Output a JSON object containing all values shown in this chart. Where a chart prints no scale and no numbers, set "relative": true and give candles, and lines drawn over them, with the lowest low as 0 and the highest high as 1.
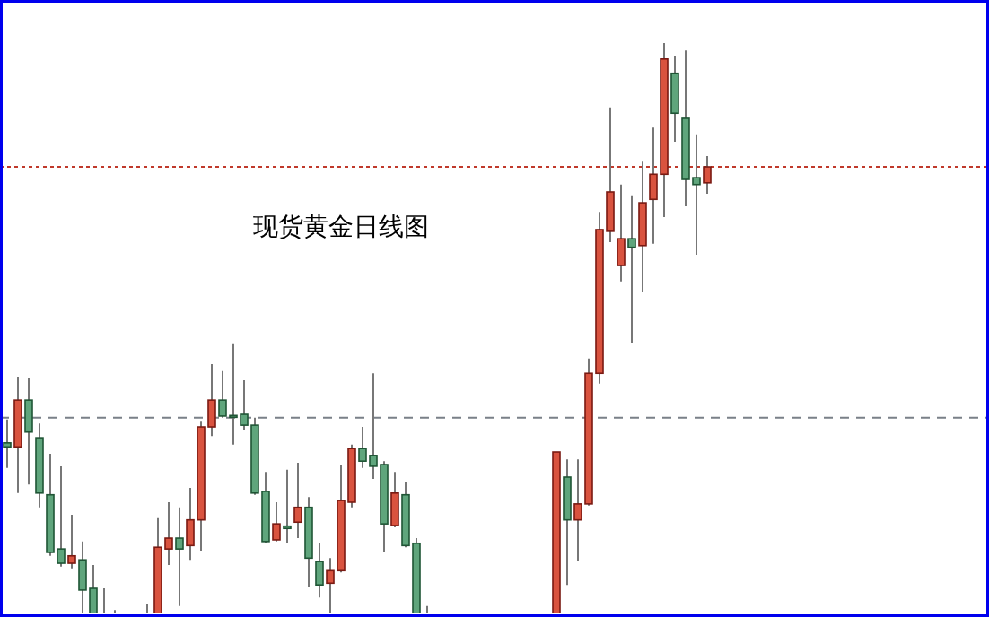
{
  "chart_data": {
    "type": "candlestick",
    "title": "现货黄金日线图",
    "relative": true,
    "categories": [
      null,
      null,
      null,
      null,
      null,
      null,
      null,
      null,
      null,
      null,
      null,
      null,
      null,
      null,
      null,
      null,
      null,
      null,
      null,
      null,
      null,
      null,
      null,
      null,
      null,
      null,
      null,
      null,
      null,
      null,
      null,
      null,
      null,
      null,
      null,
      null,
      null,
      null,
      null,
      null,
      null,
      null,
      null,
      null,
      null,
      null,
      null,
      null,
      null,
      null,
      null,
      null,
      null,
      null,
      null,
      null,
      null,
      null,
      null,
      null,
      null,
      null,
      null,
      null,
      null,
      null
    ],
    "ohlc": [
      [
        0.299,
        0.34,
        0.255,
        0.292
      ],
      [
        0.292,
        0.415,
        0.211,
        0.374
      ],
      [
        0.374,
        0.412,
        0.226,
        0.318
      ],
      [
        0.308,
        0.333,
        0.186,
        0.211
      ],
      [
        0.208,
        0.28,
        0.101,
        0.107
      ],
      [
        0.113,
        0.258,
        0.082,
        0.088
      ],
      [
        0.088,
        0.173,
        0.079,
        0.101
      ],
      [
        0.094,
        0.126,
        0,
        0.041
      ],
      [
        0.044,
        0.085,
        0,
        0
      ],
      [
        0,
        0.044,
        0,
        0
      ],
      [
        0,
        0.006,
        0,
        0
      ],
      null,
      null,
      [
        0,
        0.016,
        0,
        0
      ],
      [
        0,
        0.167,
        0,
        0.116
      ],
      [
        0.113,
        0.195,
        0.085,
        0.132
      ],
      [
        0.132,
        0.186,
        0.013,
        0.113
      ],
      [
        0.119,
        0.22,
        0.094,
        0.164
      ],
      [
        0.164,
        0.336,
        0.11,
        0.327
      ],
      [
        0.327,
        0.437,
        0.311,
        0.374
      ],
      [
        0.374,
        0.425,
        0.343,
        0.346
      ],
      [
        0.347,
        0.472,
        0.296,
        0.344
      ],
      [
        0.349,
        0.409,
        0.321,
        0.33
      ],
      [
        0.33,
        0.343,
        0.208,
        0.211
      ],
      [
        0.214,
        0.248,
        0.123,
        0.126
      ],
      [
        0.129,
        0.195,
        0.126,
        0.157
      ],
      [
        0.153,
        0.252,
        0.123,
        0.149
      ],
      [
        0.16,
        0.264,
        0.132,
        0.186
      ],
      [
        0.186,
        0.204,
        0.047,
        0.097
      ],
      [
        0.091,
        0.123,
        0.028,
        0.05
      ],
      [
        0.053,
        0.097,
        0,
        0.075
      ],
      [
        0.075,
        0.261,
        0.072,
        0.198
      ],
      [
        0.195,
        0.296,
        0.186,
        0.289
      ],
      [
        0.289,
        0.327,
        0.255,
        0.267
      ],
      [
        0.277,
        0.421,
        0.236,
        0.258
      ],
      [
        0.261,
        0.267,
        0.107,
        0.157
      ],
      [
        0.154,
        0.248,
        0.151,
        0.211
      ],
      [
        0.208,
        0.23,
        0.116,
        0.119
      ],
      [
        0.123,
        0.132,
        0,
        0
      ],
      [
        0,
        0.013,
        0,
        0
      ],
      null,
      null,
      null,
      null,
      null,
      null,
      null,
      null,
      null,
      null,
      null,
      [
        0,
        0.283,
        0,
        0.283
      ],
      [
        0.239,
        0.27,
        0.05,
        0.164
      ],
      [
        0.164,
        0.27,
        0.091,
        0.192
      ],
      [
        0.192,
        0.447,
        0.189,
        0.421
      ],
      [
        0.421,
        0.704,
        0.403,
        0.673
      ],
      [
        0.67,
        0.887,
        0.651,
        0.739
      ],
      [
        0.61,
        0.752,
        0.582,
        0.657
      ],
      [
        0.657,
        0.733,
        0.475,
        0.642
      ],
      [
        0.645,
        0.792,
        0.563,
        0.72
      ],
      [
        0.726,
        0.852,
        0.648,
        0.77
      ],
      [
        0.77,
        1,
        0.695,
        0.972
      ],
      [
        0.947,
        0.978,
        0.827,
        0.877
      ],
      [
        0.868,
        0.987,
        0.714,
        0.761
      ],
      [
        0.764,
        0.84,
        0.629,
        0.752
      ],
      [
        0.755,
        0.802,
        0.736,
        0.783
      ]
    ],
    "ref_lines": [
      {
        "axis": "y",
        "value": 0.343,
        "color": "#7a8088",
        "line_style": "dashed"
      },
      {
        "axis": "y",
        "value": 0.783,
        "color": "#c0392b",
        "line_style": "dotted"
      }
    ]
  }
}
